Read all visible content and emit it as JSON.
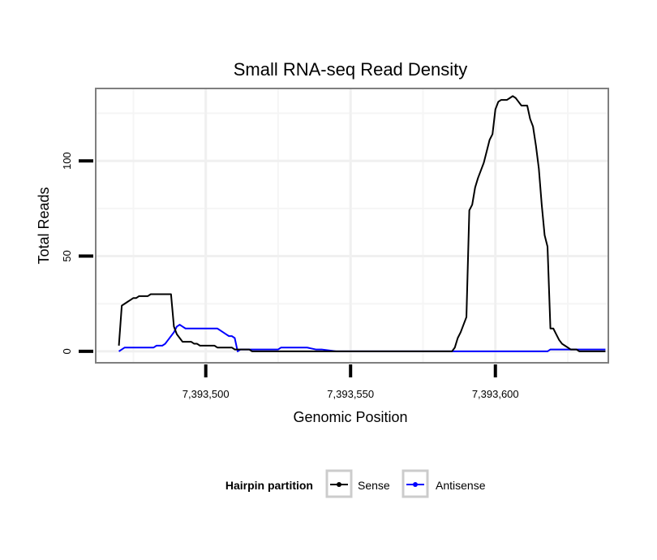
{
  "chart_data": {
    "type": "line",
    "title": "Small RNA-seq Read Density",
    "xlabel": "Genomic Position",
    "ylabel": "Total Reads",
    "xlim": [
      7393462,
      7393639
    ],
    "ylim": [
      -6,
      138
    ],
    "x_ticks": [
      7393500,
      7393550,
      7393600
    ],
    "x_tick_labels": [
      "7,393,500",
      "7,393,550",
      "7,393,600"
    ],
    "y_ticks": [
      0,
      50,
      100
    ],
    "y_tick_labels": [
      "0",
      "50",
      "100"
    ],
    "grid": true,
    "legend": {
      "title": "Hairpin partition",
      "position": "bottom",
      "entries": [
        "Sense",
        "Antisense"
      ]
    },
    "series": [
      {
        "name": "Sense",
        "color": "#000000",
        "points": [
          [
            7393470,
            3
          ],
          [
            7393471,
            24
          ],
          [
            7393472,
            25
          ],
          [
            7393473,
            26
          ],
          [
            7393474,
            27
          ],
          [
            7393475,
            28
          ],
          [
            7393476,
            28
          ],
          [
            7393477,
            29
          ],
          [
            7393478,
            29
          ],
          [
            7393479,
            29
          ],
          [
            7393480,
            29
          ],
          [
            7393481,
            30
          ],
          [
            7393482,
            30
          ],
          [
            7393483,
            30
          ],
          [
            7393484,
            30
          ],
          [
            7393485,
            30
          ],
          [
            7393486,
            30
          ],
          [
            7393487,
            30
          ],
          [
            7393488,
            30
          ],
          [
            7393489,
            13
          ],
          [
            7393490,
            9
          ],
          [
            7393491,
            7
          ],
          [
            7393492,
            5
          ],
          [
            7393493,
            5
          ],
          [
            7393494,
            5
          ],
          [
            7393495,
            5
          ],
          [
            7393496,
            4
          ],
          [
            7393497,
            4
          ],
          [
            7393498,
            3
          ],
          [
            7393499,
            3
          ],
          [
            7393500,
            3
          ],
          [
            7393501,
            3
          ],
          [
            7393502,
            3
          ],
          [
            7393503,
            3
          ],
          [
            7393504,
            2
          ],
          [
            7393505,
            2
          ],
          [
            7393506,
            2
          ],
          [
            7393507,
            2
          ],
          [
            7393508,
            2
          ],
          [
            7393509,
            2
          ],
          [
            7393510,
            1
          ],
          [
            7393511,
            1
          ],
          [
            7393512,
            1
          ],
          [
            7393513,
            1
          ],
          [
            7393514,
            1
          ],
          [
            7393515,
            1
          ],
          [
            7393516,
            0
          ],
          [
            7393520,
            0
          ],
          [
            7393540,
            0
          ],
          [
            7393560,
            0
          ],
          [
            7393580,
            0
          ],
          [
            7393584,
            0
          ],
          [
            7393585,
            0
          ],
          [
            7393586,
            2
          ],
          [
            7393587,
            7
          ],
          [
            7393588,
            10
          ],
          [
            7393589,
            14
          ],
          [
            7393590,
            18
          ],
          [
            7393591,
            74
          ],
          [
            7393592,
            77
          ],
          [
            7393593,
            86
          ],
          [
            7393594,
            91
          ],
          [
            7393595,
            95
          ],
          [
            7393596,
            99
          ],
          [
            7393597,
            105
          ],
          [
            7393598,
            111
          ],
          [
            7393599,
            114
          ],
          [
            7393600,
            127
          ],
          [
            7393601,
            131
          ],
          [
            7393602,
            132
          ],
          [
            7393603,
            132
          ],
          [
            7393604,
            132
          ],
          [
            7393605,
            133
          ],
          [
            7393606,
            134
          ],
          [
            7393607,
            133
          ],
          [
            7393608,
            131
          ],
          [
            7393609,
            129
          ],
          [
            7393610,
            129
          ],
          [
            7393611,
            129
          ],
          [
            7393612,
            122
          ],
          [
            7393613,
            118
          ],
          [
            7393614,
            108
          ],
          [
            7393615,
            96
          ],
          [
            7393616,
            77
          ],
          [
            7393617,
            61
          ],
          [
            7393618,
            55
          ],
          [
            7393619,
            12
          ],
          [
            7393620,
            12
          ],
          [
            7393621,
            9
          ],
          [
            7393622,
            6
          ],
          [
            7393623,
            4
          ],
          [
            7393624,
            3
          ],
          [
            7393625,
            2
          ],
          [
            7393626,
            1
          ],
          [
            7393627,
            1
          ],
          [
            7393628,
            1
          ],
          [
            7393629,
            0
          ],
          [
            7393630,
            0
          ],
          [
            7393638,
            0
          ]
        ]
      },
      {
        "name": "Antisense",
        "color": "#0000ff",
        "points": [
          [
            7393470,
            0
          ],
          [
            7393471,
            1
          ],
          [
            7393472,
            2
          ],
          [
            7393473,
            2
          ],
          [
            7393475,
            2
          ],
          [
            7393480,
            2
          ],
          [
            7393482,
            2
          ],
          [
            7393483,
            3
          ],
          [
            7393484,
            3
          ],
          [
            7393485,
            3
          ],
          [
            7393486,
            4
          ],
          [
            7393487,
            6
          ],
          [
            7393488,
            8
          ],
          [
            7393489,
            10
          ],
          [
            7393490,
            13
          ],
          [
            7393491,
            14
          ],
          [
            7393492,
            13
          ],
          [
            7393493,
            12
          ],
          [
            7393494,
            12
          ],
          [
            7393495,
            12
          ],
          [
            7393500,
            12
          ],
          [
            7393504,
            12
          ],
          [
            7393505,
            11
          ],
          [
            7393506,
            10
          ],
          [
            7393507,
            9
          ],
          [
            7393508,
            8
          ],
          [
            7393509,
            8
          ],
          [
            7393510,
            7
          ],
          [
            7393511,
            0
          ],
          [
            7393512,
            1
          ],
          [
            7393513,
            1
          ],
          [
            7393515,
            1
          ],
          [
            7393520,
            1
          ],
          [
            7393525,
            1
          ],
          [
            7393526,
            2
          ],
          [
            7393530,
            2
          ],
          [
            7393535,
            2
          ],
          [
            7393538,
            1
          ],
          [
            7393540,
            1
          ],
          [
            7393545,
            0
          ],
          [
            7393560,
            0
          ],
          [
            7393580,
            0
          ],
          [
            7393600,
            0
          ],
          [
            7393615,
            0
          ],
          [
            7393618,
            0
          ],
          [
            7393619,
            1
          ],
          [
            7393625,
            1
          ],
          [
            7393630,
            1
          ],
          [
            7393638,
            1
          ]
        ]
      }
    ]
  }
}
